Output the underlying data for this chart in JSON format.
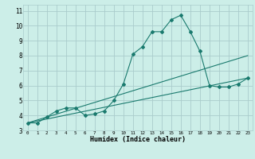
{
  "xlabel": "Humidex (Indice chaleur)",
  "bg_color": "#cceee8",
  "grid_color": "#aacccc",
  "line_color": "#1a7a6e",
  "xlim": [
    -0.5,
    23.5
  ],
  "ylim": [
    3,
    11.4
  ],
  "xticks": [
    0,
    1,
    2,
    3,
    4,
    5,
    6,
    7,
    8,
    9,
    10,
    11,
    12,
    13,
    14,
    15,
    16,
    17,
    18,
    19,
    20,
    21,
    22,
    23
  ],
  "yticks": [
    3,
    4,
    5,
    6,
    7,
    8,
    9,
    10,
    11
  ],
  "curve1_x": [
    0,
    1,
    2,
    3,
    4,
    5,
    6,
    7,
    8,
    9,
    10,
    11,
    12,
    13,
    14,
    15,
    16,
    17,
    18,
    19,
    20,
    21,
    22,
    23
  ],
  "curve1_y": [
    3.5,
    3.5,
    3.9,
    4.3,
    4.5,
    4.5,
    4.0,
    4.1,
    4.3,
    5.0,
    6.1,
    8.1,
    8.6,
    9.6,
    9.6,
    10.4,
    10.7,
    9.6,
    8.3,
    6.0,
    5.9,
    5.9,
    6.1,
    6.5
  ],
  "curve2_x": [
    0,
    23
  ],
  "curve2_y": [
    3.5,
    6.5
  ],
  "curve3_x": [
    0,
    23
  ],
  "curve3_y": [
    3.5,
    8.0
  ]
}
